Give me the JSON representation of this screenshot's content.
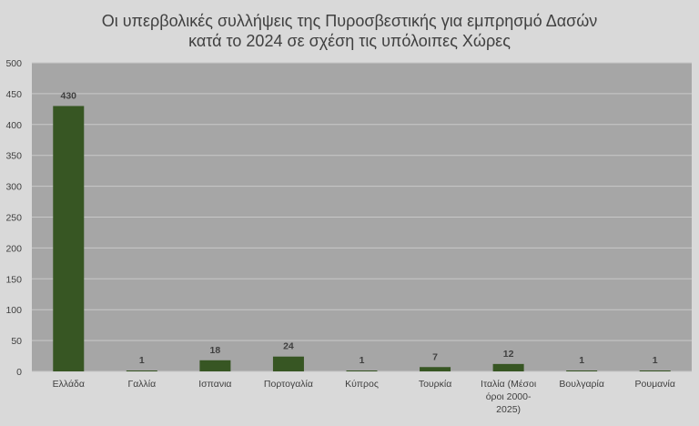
{
  "chart_data": {
    "type": "bar",
    "title_line1": "Οι υπερβολικές συλλήψεις της Πυροσβεστικής για εμπρησμό Δασών",
    "title_line2": "κατά το 2024 σε σχέση τις υπόλοιπες Χώρες",
    "categories": [
      [
        "Ελλάδα"
      ],
      [
        "Γαλλία"
      ],
      [
        "Ισπανια"
      ],
      [
        "Πορτογαλία"
      ],
      [
        "Κύπρος"
      ],
      [
        "Τουρκία"
      ],
      [
        "Ιταλία (Μέσοι",
        "όροι 2000-",
        "2025)"
      ],
      [
        "Βουλγαρία"
      ],
      [
        "Ρουμανία"
      ]
    ],
    "values": [
      430,
      1,
      18,
      24,
      1,
      7,
      12,
      1,
      1
    ],
    "ylim": [
      0,
      500
    ],
    "yticks": [
      0,
      50,
      100,
      150,
      200,
      250,
      300,
      350,
      400,
      450,
      500
    ],
    "grid": true,
    "colors": {
      "bar": "#375623",
      "plot_bg": "#a6a6a6",
      "page_bg": "#d9d9d9",
      "grid": "#c8c8c8",
      "text": "#404040"
    }
  }
}
